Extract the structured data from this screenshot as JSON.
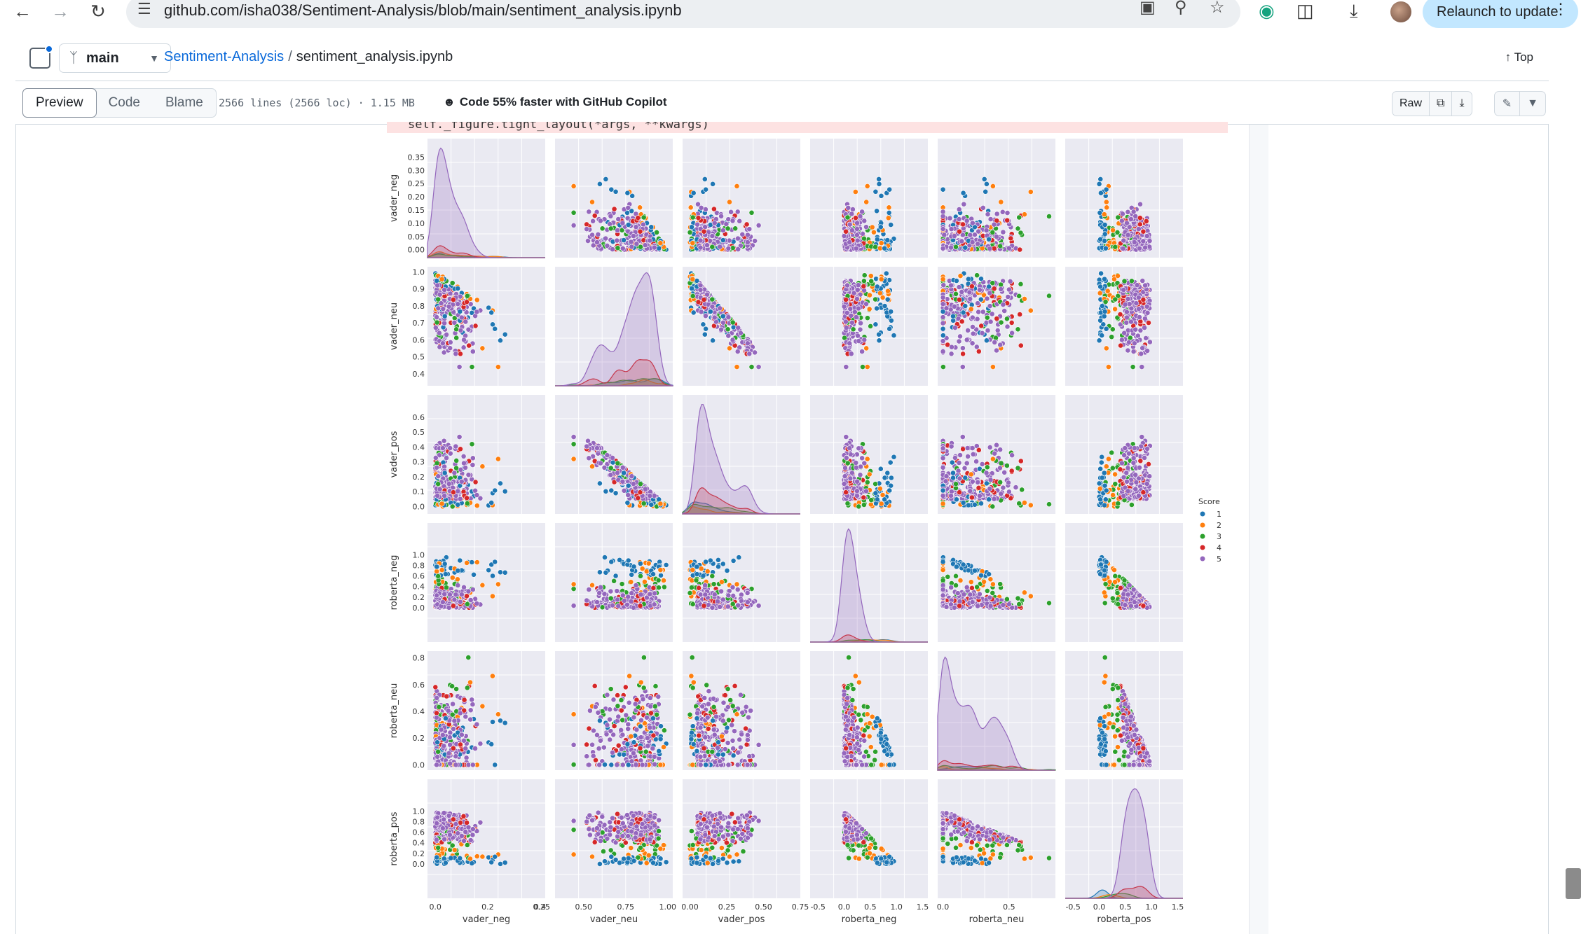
{
  "browser": {
    "url": "github.com/isha038/Sentiment-Analysis/blob/main/sentiment_analysis.ipynb",
    "relaunch_label": "Relaunch to update",
    "icons": [
      "back-icon",
      "forward-icon",
      "reload-icon",
      "tune-icon",
      "install-icon",
      "zoom-icon",
      "star-icon",
      "grammarly-icon",
      "extensions-icon",
      "download-icon",
      "profile-avatar",
      "menu-icon"
    ]
  },
  "header": {
    "branch": "main",
    "repo": "Sentiment-Analysis",
    "separator": "/",
    "file": "sentiment_analysis.ipynb",
    "top_label": "Top"
  },
  "toolbar": {
    "tabs": [
      "Preview",
      "Code",
      "Blame"
    ],
    "active_tab": "Preview",
    "meta": "2566 lines (2566 loc) · 1.15 MB",
    "copilot": "Code 55% faster with GitHub Copilot",
    "raw_label": "Raw"
  },
  "notebook": {
    "warning_text": "self._figure.tight_layout(*args, **kwargs)"
  },
  "chart_data": {
    "type": "scatter",
    "kind": "pairplot",
    "variables": [
      "vader_neg",
      "vader_neu",
      "vader_pos",
      "roberta_neg",
      "roberta_neu",
      "roberta_pos"
    ],
    "hue": "Score",
    "legend": {
      "title": "Score",
      "entries": [
        "1",
        "2",
        "3",
        "4",
        "5"
      ],
      "colors": [
        "#1f77b4",
        "#ff7f0e",
        "#2ca02c",
        "#d62728",
        "#9467bd"
      ],
      "placement": "right"
    },
    "ranges": {
      "vader_neg": [
        -0.03,
        0.42
      ],
      "vader_neu": [
        0.33,
        1.03
      ],
      "vader_pos": [
        -0.05,
        0.75
      ],
      "roberta_neg": [
        -0.65,
        1.6
      ],
      "roberta_neu": [
        -0.04,
        0.85
      ],
      "roberta_pos": [
        -0.65,
        1.6
      ]
    },
    "y_ticks": {
      "vader_neg": [
        "0.00",
        "0.05",
        "0.10",
        "0.15",
        "0.20",
        "0.25",
        "0.30",
        "0.35"
      ],
      "vader_neu": [
        "0.4",
        "0.5",
        "0.6",
        "0.7",
        "0.8",
        "0.9",
        "1.0"
      ],
      "vader_pos": [
        "0.0",
        "0.1",
        "0.2",
        "0.3",
        "0.4",
        "0.5",
        "0.6"
      ],
      "roberta_neg": [
        "0.0",
        "0.2",
        "0.4",
        "0.6",
        "0.8",
        "1.0"
      ],
      "roberta_neu": [
        "0.0",
        "0.2",
        "0.4",
        "0.6",
        "0.8"
      ],
      "roberta_pos": [
        "0.0",
        "0.2",
        "0.4",
        "0.6",
        "0.8",
        "1.0"
      ]
    },
    "x_ticks": {
      "vader_neg": [
        "0.0",
        "0.2",
        "0.4"
      ],
      "vader_neu": [
        "0.25",
        "0.50",
        "0.75",
        "1.00"
      ],
      "vader_pos": [
        "0.00",
        "0.25",
        "0.50",
        "0.75"
      ],
      "roberta_neg": [
        "-0.5",
        "0.0",
        "0.5",
        "1.0",
        "1.5"
      ],
      "roberta_neu": [
        "0.0",
        "0.5"
      ],
      "roberta_pos": [
        "-0.5",
        "0.0",
        "0.5",
        "1.0",
        "1.5"
      ]
    },
    "kde_peak_fraction": {
      "vader_neg": [
        0.04,
        0.05,
        0.03,
        0.1,
        0.92
      ],
      "vader_neu": [
        0.06,
        0.05,
        0.06,
        0.22,
        0.95
      ],
      "vader_pos": [
        0.1,
        0.06,
        0.08,
        0.22,
        0.92
      ],
      "roberta_neg": [
        0.02,
        0.02,
        0.02,
        0.06,
        0.95
      ],
      "roberta_neu": [
        0.03,
        0.03,
        0.04,
        0.08,
        0.95
      ],
      "roberta_pos": [
        0.07,
        0.03,
        0.04,
        0.1,
        0.92
      ]
    },
    "grid": true
  }
}
